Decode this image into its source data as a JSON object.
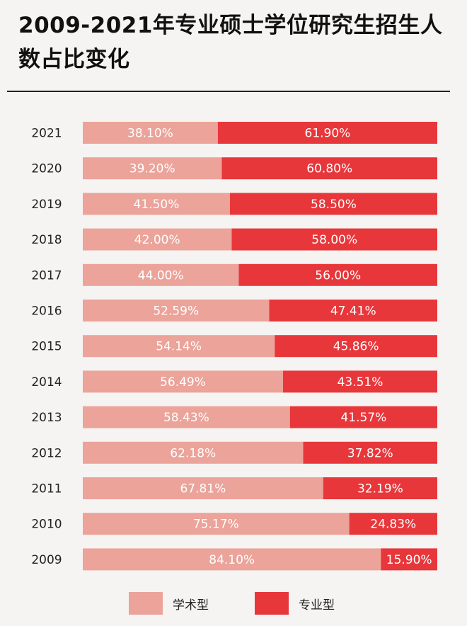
{
  "title": "2009-2021年专业硕士学位研究生招生人数占比变化",
  "colors": {
    "academic": "#eba39a",
    "professional": "#e8373b"
  },
  "chart_data": {
    "type": "bar",
    "orientation": "horizontal",
    "stacked": true,
    "normalized_percent": true,
    "categories": [
      "2021",
      "2020",
      "2019",
      "2018",
      "2017",
      "2016",
      "2015",
      "2014",
      "2013",
      "2012",
      "2011",
      "2010",
      "2009"
    ],
    "series": [
      {
        "name": "学术型",
        "values": [
          38.1,
          39.2,
          41.5,
          42.0,
          44.0,
          52.59,
          54.14,
          56.49,
          58.43,
          62.18,
          67.81,
          75.17,
          84.1
        ],
        "labels": [
          "38.10%",
          "39.20%",
          "41.50%",
          "42.00%",
          "44.00%",
          "52.59%",
          "54.14%",
          "56.49%",
          "58.43%",
          "62.18%",
          "67.81%",
          "75.17%",
          "84.10%"
        ]
      },
      {
        "name": "专业型",
        "values": [
          61.9,
          60.8,
          58.5,
          58.0,
          56.0,
          47.41,
          45.86,
          43.51,
          41.57,
          37.82,
          32.19,
          24.83,
          15.9
        ],
        "labels": [
          "61.90%",
          "60.80%",
          "58.50%",
          "58.00%",
          "56.00%",
          "47.41%",
          "45.86%",
          "43.51%",
          "41.57%",
          "37.82%",
          "32.19%",
          "24.83%",
          "15.90%"
        ]
      }
    ],
    "xlim": [
      0,
      100
    ],
    "grid": false,
    "legend_position": "bottom"
  }
}
